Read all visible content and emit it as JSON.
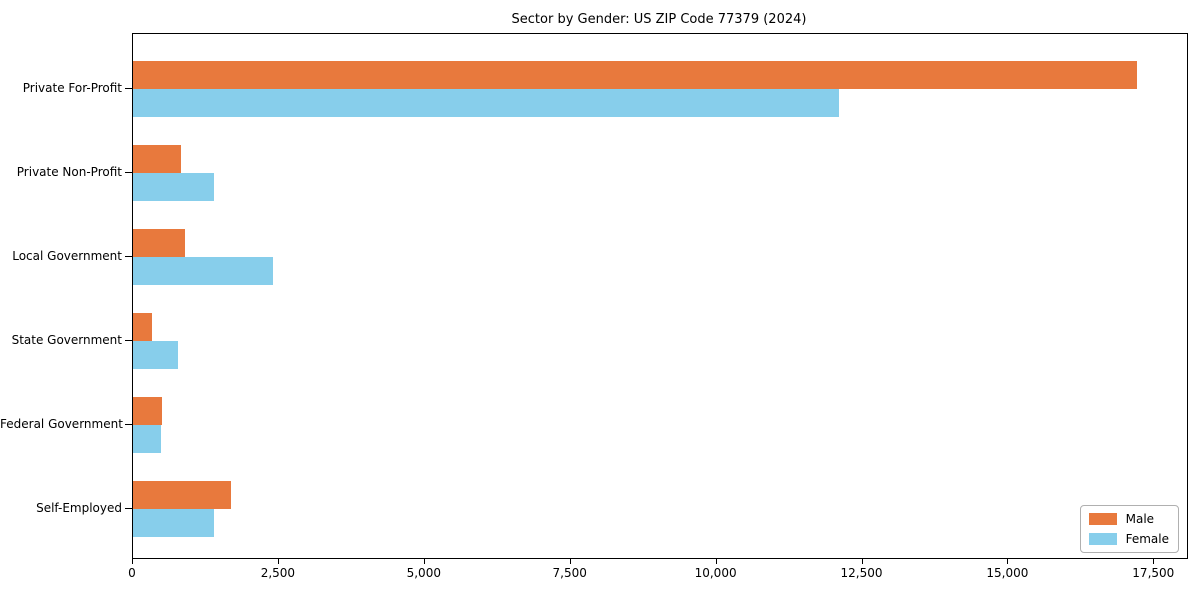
{
  "chart_data": {
    "type": "bar",
    "orientation": "horizontal",
    "title": "Sector by Gender: US ZIP Code 77379 (2024)",
    "categories": [
      "Private For-Profit",
      "Private Non-Profit",
      "Local Government",
      "State Government",
      "Federal Government",
      "Self-Employed"
    ],
    "series": [
      {
        "name": "Male",
        "color": "#e8793d",
        "values": [
          17200,
          830,
          890,
          330,
          500,
          1670
        ]
      },
      {
        "name": "Female",
        "color": "#87ceeb",
        "values": [
          12100,
          1390,
          2400,
          770,
          480,
          1390
        ]
      }
    ],
    "xlabel": "",
    "ylabel": "",
    "xlim": [
      0,
      18060
    ],
    "x_ticks": [
      0,
      2500,
      5000,
      7500,
      10000,
      12500,
      15000,
      17500
    ],
    "x_tick_labels": [
      "0",
      "2,500",
      "5,000",
      "7,500",
      "10,000",
      "12,500",
      "15,000",
      "17,500"
    ],
    "grid": false,
    "legend": {
      "position": "lower right",
      "border_color": "#b0b0b0"
    },
    "colors": {
      "background": "#ffffff",
      "axis": "#000000",
      "male": "#e8793d",
      "female": "#87ceeb"
    }
  }
}
